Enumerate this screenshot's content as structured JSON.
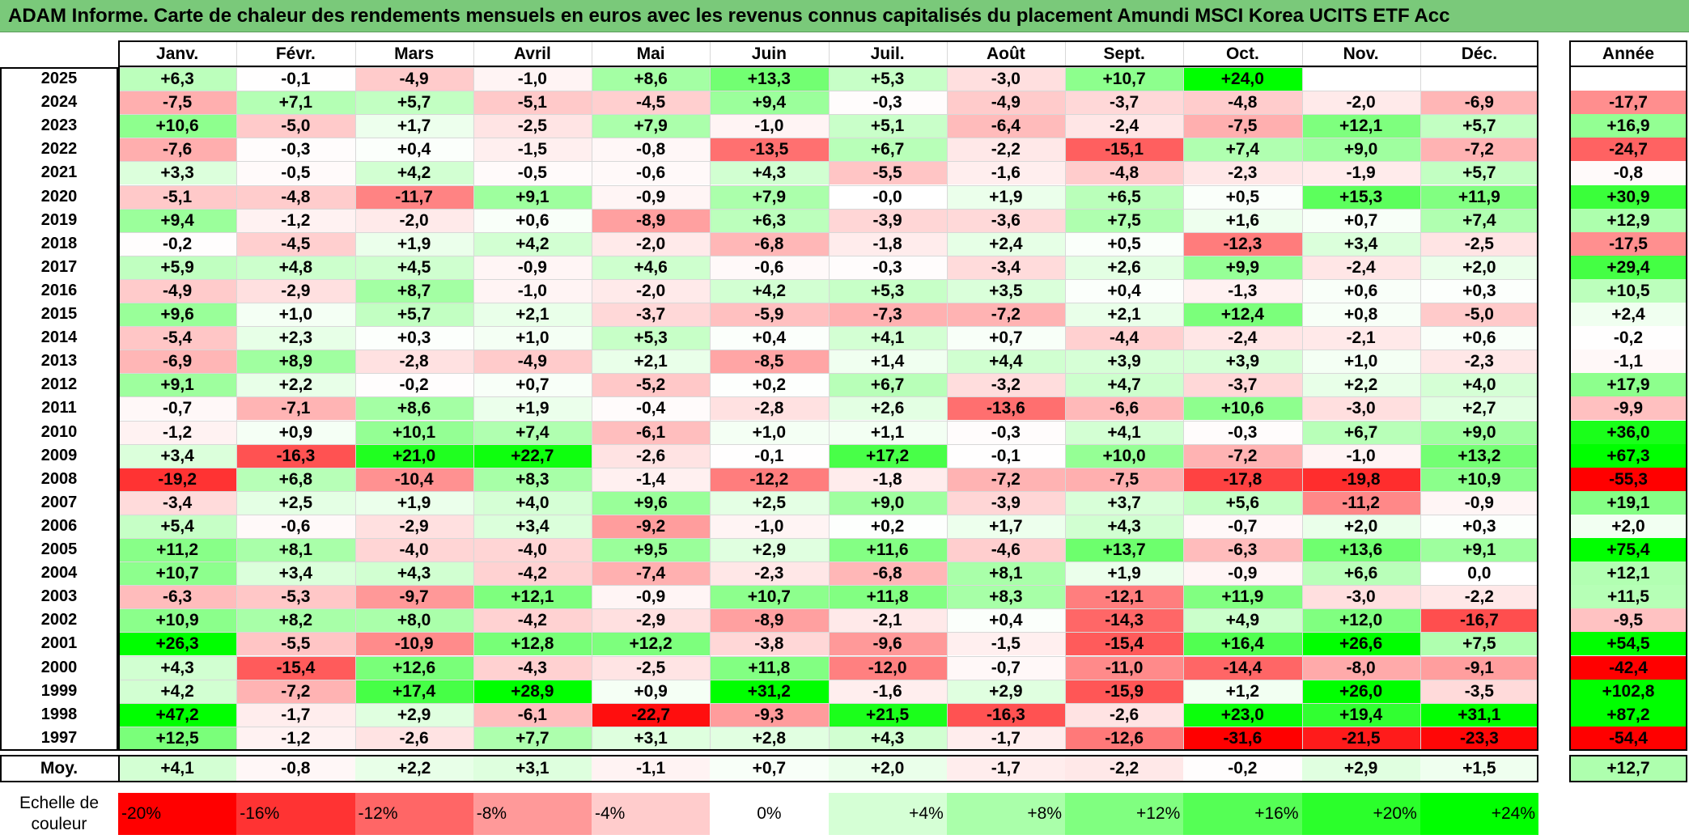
{
  "title": "ADAM Informe. Carte de chaleur des rendements mensuels en euros avec les revenus connus capitalisés du placement Amundi MSCI Korea UCITS ETF Acc",
  "chart_data": {
    "type": "heatmap",
    "title": "ADAM Informe. Carte de chaleur des rendements mensuels en euros avec les revenus connus capitalisés du placement Amundi MSCI Korea UCITS ETF Acc",
    "months": [
      "Janv.",
      "Févr.",
      "Mars",
      "Avril",
      "Mai",
      "Juin",
      "Juil.",
      "Août",
      "Sept.",
      "Oct.",
      "Nov.",
      "Déc."
    ],
    "year_header": "Année",
    "average_label": "Moy.",
    "rows": [
      {
        "year": "2025",
        "values": [
          "+6,3",
          "-0,1",
          "-4,9",
          "-1,0",
          "+8,6",
          "+13,3",
          "+5,3",
          "-3,0",
          "+10,7",
          "+24,0",
          "",
          ""
        ],
        "annual": ""
      },
      {
        "year": "2024",
        "values": [
          "-7,5",
          "+7,1",
          "+5,7",
          "-5,1",
          "-4,5",
          "+9,4",
          "-0,3",
          "-4,9",
          "-3,7",
          "-4,8",
          "-2,0",
          "-6,9"
        ],
        "annual": "-17,7"
      },
      {
        "year": "2023",
        "values": [
          "+10,6",
          "-5,0",
          "+1,7",
          "-2,5",
          "+7,9",
          "-1,0",
          "+5,1",
          "-6,4",
          "-2,4",
          "-7,5",
          "+12,1",
          "+5,7"
        ],
        "annual": "+16,9"
      },
      {
        "year": "2022",
        "values": [
          "-7,6",
          "-0,3",
          "+0,4",
          "-1,5",
          "-0,8",
          "-13,5",
          "+6,7",
          "-2,2",
          "-15,1",
          "+7,4",
          "+9,0",
          "-7,2"
        ],
        "annual": "-24,7"
      },
      {
        "year": "2021",
        "values": [
          "+3,3",
          "-0,5",
          "+4,2",
          "-0,5",
          "-0,6",
          "+4,3",
          "-5,5",
          "-1,6",
          "-4,8",
          "-2,3",
          "-1,9",
          "+5,7"
        ],
        "annual": "-0,8"
      },
      {
        "year": "2020",
        "values": [
          "-5,1",
          "-4,8",
          "-11,7",
          "+9,1",
          "-0,9",
          "+7,9",
          "-0,0",
          "+1,9",
          "+6,5",
          "+0,5",
          "+15,3",
          "+11,9"
        ],
        "annual": "+30,9"
      },
      {
        "year": "2019",
        "values": [
          "+9,4",
          "-1,2",
          "-2,0",
          "+0,6",
          "-8,9",
          "+6,3",
          "-3,9",
          "-3,6",
          "+7,5",
          "+1,6",
          "+0,7",
          "+7,4"
        ],
        "annual": "+12,9"
      },
      {
        "year": "2018",
        "values": [
          "-0,2",
          "-4,5",
          "+1,9",
          "+4,2",
          "-2,0",
          "-6,8",
          "-1,8",
          "+2,4",
          "+0,5",
          "-12,3",
          "+3,4",
          "-2,5"
        ],
        "annual": "-17,5"
      },
      {
        "year": "2017",
        "values": [
          "+5,9",
          "+4,8",
          "+4,5",
          "-0,9",
          "+4,6",
          "-0,6",
          "-0,3",
          "-3,4",
          "+2,6",
          "+9,9",
          "-2,4",
          "+2,0"
        ],
        "annual": "+29,4"
      },
      {
        "year": "2016",
        "values": [
          "-4,9",
          "-2,9",
          "+8,7",
          "-1,0",
          "-2,0",
          "+4,2",
          "+5,3",
          "+3,5",
          "+0,4",
          "-1,3",
          "+0,6",
          "+0,3"
        ],
        "annual": "+10,5"
      },
      {
        "year": "2015",
        "values": [
          "+9,6",
          "+1,0",
          "+5,7",
          "+2,1",
          "-3,7",
          "-5,9",
          "-7,3",
          "-7,2",
          "+2,1",
          "+12,4",
          "+0,8",
          "-5,0"
        ],
        "annual": "+2,4"
      },
      {
        "year": "2014",
        "values": [
          "-5,4",
          "+2,3",
          "+0,3",
          "+1,0",
          "+5,3",
          "+0,4",
          "+4,1",
          "+0,7",
          "-4,4",
          "-2,4",
          "-2,1",
          "+0,6"
        ],
        "annual": "-0,2"
      },
      {
        "year": "2013",
        "values": [
          "-6,9",
          "+8,9",
          "-2,8",
          "-4,9",
          "+2,1",
          "-8,5",
          "+1,4",
          "+4,4",
          "+3,9",
          "+3,9",
          "+1,0",
          "-2,3"
        ],
        "annual": "-1,1"
      },
      {
        "year": "2012",
        "values": [
          "+9,1",
          "+2,2",
          "-0,2",
          "+0,7",
          "-5,2",
          "+0,2",
          "+6,7",
          "-3,2",
          "+4,7",
          "-3,7",
          "+2,2",
          "+4,0"
        ],
        "annual": "+17,9"
      },
      {
        "year": "2011",
        "values": [
          "-0,7",
          "-7,1",
          "+8,6",
          "+1,9",
          "-0,4",
          "-2,8",
          "+2,6",
          "-13,6",
          "-6,6",
          "+10,6",
          "-3,0",
          "+2,7"
        ],
        "annual": "-9,9"
      },
      {
        "year": "2010",
        "values": [
          "-1,2",
          "+0,9",
          "+10,1",
          "+7,4",
          "-6,1",
          "+1,0",
          "+1,1",
          "-0,3",
          "+4,1",
          "-0,3",
          "+6,7",
          "+9,0"
        ],
        "annual": "+36,0"
      },
      {
        "year": "2009",
        "values": [
          "+3,4",
          "-16,3",
          "+21,0",
          "+22,7",
          "-2,6",
          "-0,1",
          "+17,2",
          "-0,1",
          "+10,0",
          "-7,2",
          "-1,0",
          "+13,2"
        ],
        "annual": "+67,3"
      },
      {
        "year": "2008",
        "values": [
          "-19,2",
          "+6,8",
          "-10,4",
          "+8,3",
          "-1,4",
          "-12,2",
          "-1,8",
          "-7,2",
          "-7,5",
          "-17,8",
          "-19,8",
          "+10,9"
        ],
        "annual": "-55,3"
      },
      {
        "year": "2007",
        "values": [
          "-3,4",
          "+2,5",
          "+1,9",
          "+4,0",
          "+9,6",
          "+2,5",
          "+9,0",
          "-3,9",
          "+3,7",
          "+5,6",
          "-11,2",
          "-0,9"
        ],
        "annual": "+19,1"
      },
      {
        "year": "2006",
        "values": [
          "+5,4",
          "-0,6",
          "-2,9",
          "+3,4",
          "-9,2",
          "-1,0",
          "+0,2",
          "+1,7",
          "+4,3",
          "-0,7",
          "+2,0",
          "+0,3"
        ],
        "annual": "+2,0"
      },
      {
        "year": "2005",
        "values": [
          "+11,2",
          "+8,1",
          "-4,0",
          "-4,0",
          "+9,5",
          "+2,9",
          "+11,6",
          "-4,6",
          "+13,7",
          "-6,3",
          "+13,6",
          "+9,1"
        ],
        "annual": "+75,4"
      },
      {
        "year": "2004",
        "values": [
          "+10,7",
          "+3,4",
          "+4,3",
          "-4,2",
          "-7,4",
          "-2,3",
          "-6,8",
          "+8,1",
          "+1,9",
          "-0,9",
          "+6,6",
          "0,0"
        ],
        "annual": "+12,1"
      },
      {
        "year": "2003",
        "values": [
          "-6,3",
          "-5,3",
          "-9,7",
          "+12,1",
          "-0,9",
          "+10,7",
          "+11,8",
          "+8,3",
          "-12,1",
          "+11,9",
          "-3,0",
          "-2,2"
        ],
        "annual": "+11,5"
      },
      {
        "year": "2002",
        "values": [
          "+10,9",
          "+8,2",
          "+8,0",
          "-4,2",
          "-2,9",
          "-8,9",
          "-2,1",
          "+0,4",
          "-14,3",
          "+4,9",
          "+12,0",
          "-16,7"
        ],
        "annual": "-9,5"
      },
      {
        "year": "2001",
        "values": [
          "+26,3",
          "-5,5",
          "-10,9",
          "+12,8",
          "+12,2",
          "-3,8",
          "-9,6",
          "-1,5",
          "-15,4",
          "+16,4",
          "+26,6",
          "+7,5"
        ],
        "annual": "+54,5"
      },
      {
        "year": "2000",
        "values": [
          "+4,3",
          "-15,4",
          "+12,6",
          "-4,3",
          "-2,5",
          "+11,8",
          "-12,0",
          "-0,7",
          "-11,0",
          "-14,4",
          "-8,0",
          "-9,1"
        ],
        "annual": "-42,4"
      },
      {
        "year": "1999",
        "values": [
          "+4,2",
          "-7,2",
          "+17,4",
          "+28,9",
          "+0,9",
          "+31,2",
          "-1,6",
          "+2,9",
          "-15,9",
          "+1,2",
          "+26,0",
          "-3,5"
        ],
        "annual": "+102,8"
      },
      {
        "year": "1998",
        "values": [
          "+47,2",
          "-1,7",
          "+2,9",
          "-6,1",
          "-22,7",
          "-9,3",
          "+21,5",
          "-16,3",
          "-2,6",
          "+23,0",
          "+19,4",
          "+31,1"
        ],
        "annual": "+87,2"
      },
      {
        "year": "1997",
        "values": [
          "+12,5",
          "-1,2",
          "-2,6",
          "+7,7",
          "+3,1",
          "+2,8",
          "+4,3",
          "-1,7",
          "-12,6",
          "-31,6",
          "-21,5",
          "-23,3"
        ],
        "annual": "-54,4"
      }
    ],
    "average": {
      "values": [
        "+4,1",
        "-0,8",
        "+2,2",
        "+3,1",
        "-1,1",
        "+0,7",
        "+2,0",
        "-1,7",
        "-2,2",
        "-0,2",
        "+2,9",
        "+1,5"
      ],
      "annual": "+12,7"
    },
    "scale": {
      "label_line1": "Echelle de",
      "label_line2": "couleur",
      "stops": [
        "-20%",
        "-16%",
        "-12%",
        "-8%",
        "-4%",
        "0%",
        "+4%",
        "+8%",
        "+12%",
        "+16%",
        "+20%",
        "+24%"
      ],
      "values": [
        -20,
        -16,
        -12,
        -8,
        -4,
        0,
        4,
        8,
        12,
        16,
        20,
        24
      ]
    },
    "colors": {
      "negative_max": "#ff0000",
      "positive_max": "#00ff00",
      "neutral": "#ffffff",
      "title_bar": "#7ac97a"
    }
  }
}
